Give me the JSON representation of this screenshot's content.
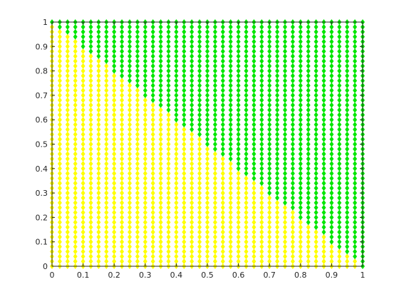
{
  "chart_data": {
    "type": "scatter",
    "title": "",
    "xlabel": "",
    "ylabel": "",
    "xlim": [
      0,
      1
    ],
    "ylim": [
      0,
      1
    ],
    "xticks": [
      "0",
      "0.1",
      "0.2",
      "0.3",
      "0.4",
      "0.5",
      "0.6",
      "0.7",
      "0.8",
      "0.9",
      "1"
    ],
    "yticks": [
      "0",
      "0.1",
      "0.2",
      "0.3",
      "0.4",
      "0.5",
      "0.6",
      "0.7",
      "0.8",
      "0.9",
      "1"
    ],
    "grid": false,
    "legend": false,
    "marker": "diamond",
    "grid_points": {
      "x_from": 0,
      "x_to": 1,
      "x_step": 0.025,
      "y_from": 0,
      "y_to": 1,
      "y_step": 0.02
    },
    "boundary": {
      "rule": "x + y < 1"
    },
    "series": [
      {
        "region": "x + y < 1",
        "color": "#ffff00"
      },
      {
        "region": "x + y >= 1",
        "color": "#00e600"
      }
    ]
  }
}
